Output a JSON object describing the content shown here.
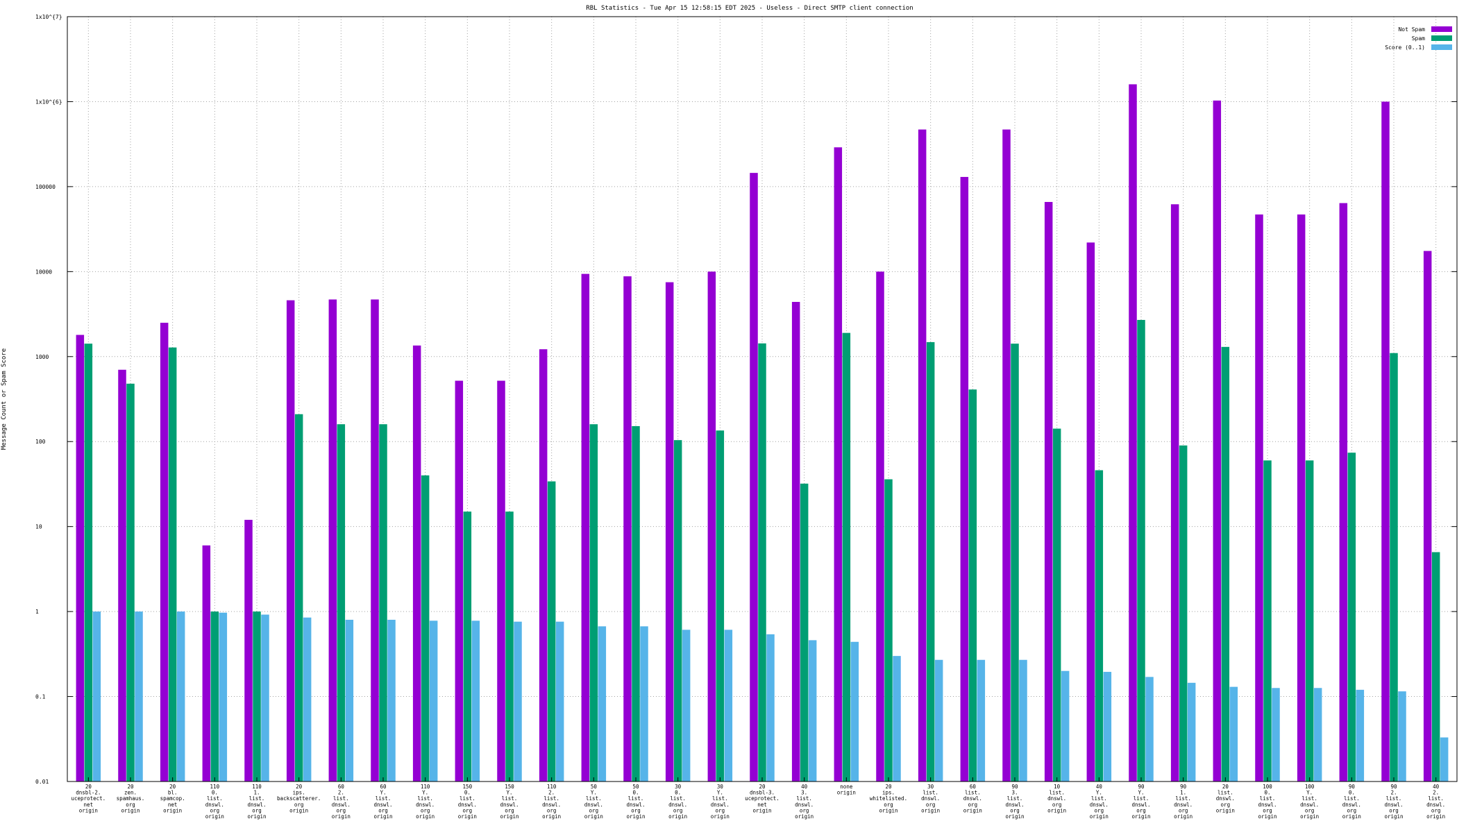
{
  "chart_data": {
    "type": "bar",
    "title": "RBL Statistics - Tue Apr 15 12:58:15 EDT 2025 - Useless - Direct SMTP client connection",
    "xlabel": "",
    "ylabel": "Message Count or Spam Score",
    "yscale": "log",
    "ylim": [
      0.01,
      10000000
    ],
    "yticks": [
      {
        "value": 0.01,
        "label": "0.01"
      },
      {
        "value": 0.1,
        "label": "0.1"
      },
      {
        "value": 1,
        "label": "1"
      },
      {
        "value": 10,
        "label": "10"
      },
      {
        "value": 100,
        "label": "100"
      },
      {
        "value": 1000,
        "label": "1000"
      },
      {
        "value": 10000,
        "label": "10000"
      },
      {
        "value": 100000,
        "label": "100000"
      },
      {
        "value": 1000000,
        "label": "1x10^{6}"
      },
      {
        "value": 10000000,
        "label": "1x10^{7}"
      }
    ],
    "grid": true,
    "legend_position": "top-right",
    "categories": [
      "20\ndnsbl-2.\nuceprotect.\nnet\norigin",
      "20\nzen.\nspamhaus.\norg\norigin",
      "20\nbl.\nspamcop.\nnet\norigin",
      "110\n0.\nlist.\ndnswl.\norg\norigin",
      "110\n1.\nlist.\ndnswl.\norg\norigin",
      "20\nips.\nbackscatterer.\norg\norigin",
      "60\n2.\nlist.\ndnswl.\norg\norigin",
      "60\nY.\nlist.\ndnswl.\norg\norigin",
      "110\nY.\nlist.\ndnswl.\norg\norigin",
      "150\n0.\nlist.\ndnswl.\norg\norigin",
      "150\nY.\nlist.\ndnswl.\norg\norigin",
      "110\n2.\nlist.\ndnswl.\norg\norigin",
      "50\nY.\nlist.\ndnswl.\norg\norigin",
      "50\n0.\nlist.\ndnswl.\norg\norigin",
      "30\n0.\nlist.\ndnswl.\norg\norigin",
      "30\nY.\nlist.\ndnswl.\norg\norigin",
      "20\ndnsbl-3.\nuceprotect.\nnet\norigin",
      "40\n3.\nlist.\ndnswl.\norg\norigin",
      "none\norigin",
      "20\nips.\nwhitelisted.\norg\norigin",
      "30\nlist.\ndnswl.\norg\norigin",
      "60\nlist.\ndnswl.\norg\norigin",
      "90\n3.\nlist.\ndnswl.\norg\norigin",
      "10\nlist.\ndnswl.\norg\norigin",
      "40\nY.\nlist.\ndnswl.\norg\norigin",
      "90\nY.\nlist.\ndnswl.\norg\norigin",
      "90\n1.\nlist.\ndnswl.\norg\norigin",
      "20\nlist.\ndnswl.\norg\norigin",
      "100\n0.\nlist.\ndnswl.\norg\norigin",
      "100\nY.\nlist.\ndnswl.\norg\norigin",
      "90\n0.\nlist.\ndnswl.\norg\norigin",
      "90\n2.\nlist.\ndnswl.\norg\norigin",
      "40\n2.\nlist.\ndnswl.\norg\norigin"
    ],
    "series": [
      {
        "name": "Not Spam",
        "color": "#9400d3",
        "values": [
          1800,
          700,
          2500,
          6,
          12,
          4600,
          4700,
          4700,
          1350,
          520,
          520,
          1220,
          9400,
          8800,
          7500,
          10000,
          145000,
          4400,
          290000,
          10000,
          470000,
          130000,
          470000,
          66000,
          22000,
          1600000,
          62000,
          1030000,
          47000,
          47000,
          64000,
          1000000,
          17500
        ]
      },
      {
        "name": "Spam",
        "color": "#009e73",
        "values": [
          1420,
          480,
          1280,
          1,
          1,
          210,
          160,
          160,
          40,
          15,
          15,
          34,
          160,
          152,
          104,
          135,
          1430,
          32,
          1900,
          36,
          1480,
          410,
          1420,
          142,
          46,
          2700,
          90,
          1300,
          60,
          60,
          74,
          1100,
          5
        ]
      },
      {
        "name": "Score (0..1)",
        "color": "#56b4e9",
        "values": [
          1,
          1,
          1,
          0.97,
          0.92,
          0.85,
          0.8,
          0.8,
          0.78,
          0.78,
          0.76,
          0.76,
          0.67,
          0.67,
          0.61,
          0.61,
          0.54,
          0.46,
          0.44,
          0.3,
          0.27,
          0.27,
          0.27,
          0.2,
          0.195,
          0.17,
          0.145,
          0.13,
          0.126,
          0.126,
          0.12,
          0.115,
          0.033
        ]
      }
    ]
  }
}
